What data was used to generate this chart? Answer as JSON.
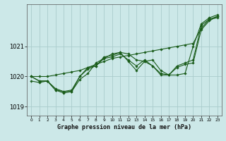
{
  "title": "Graphe pression niveau de la mer (hPa)",
  "background_color": "#cce8e8",
  "line_color": "#1a5c1a",
  "grid_color": "#aacccc",
  "ylim": [
    1018.7,
    1022.4
  ],
  "yticks": [
    1019,
    1020,
    1021
  ],
  "xlim": [
    -0.5,
    23.5
  ],
  "xticks": [
    0,
    1,
    2,
    3,
    4,
    5,
    6,
    7,
    8,
    9,
    10,
    11,
    12,
    13,
    14,
    15,
    16,
    17,
    18,
    19,
    20,
    21,
    22,
    23
  ],
  "series": [
    {
      "x": [
        0,
        1,
        2,
        3,
        4,
        5,
        6,
        7,
        8,
        9,
        10,
        11,
        12,
        13,
        14,
        15,
        16,
        17,
        18,
        19,
        20,
        21,
        22,
        23
      ],
      "y": [
        1020.0,
        1020.0,
        1020.0,
        1020.05,
        1020.1,
        1020.15,
        1020.2,
        1020.3,
        1020.4,
        1020.5,
        1020.6,
        1020.65,
        1020.7,
        1020.75,
        1020.8,
        1020.85,
        1020.9,
        1020.95,
        1021.0,
        1021.05,
        1021.1,
        1021.6,
        1021.9,
        1021.95
      ]
    },
    {
      "x": [
        0,
        1,
        2,
        3,
        4,
        5,
        6,
        7,
        8,
        9,
        10,
        11,
        12,
        13,
        14,
        15,
        16,
        17,
        18,
        19,
        20,
        21,
        22,
        23
      ],
      "y": [
        1019.85,
        1019.8,
        1019.85,
        1019.6,
        1019.5,
        1019.5,
        1019.9,
        1020.1,
        1020.45,
        1020.6,
        1020.75,
        1020.8,
        1020.75,
        1020.55,
        1020.5,
        1020.55,
        1020.2,
        1020.05,
        1020.05,
        1020.1,
        1021.0,
        1021.75,
        1021.95,
        1022.05
      ]
    },
    {
      "x": [
        0,
        1,
        2,
        3,
        4,
        5,
        6,
        7,
        8,
        9,
        10,
        11,
        12,
        13,
        14,
        15,
        16,
        17,
        18,
        19,
        20,
        21,
        22,
        23
      ],
      "y": [
        1020.0,
        1019.85,
        1019.85,
        1019.55,
        1019.45,
        1019.5,
        1020.0,
        1020.3,
        1020.35,
        1020.6,
        1020.65,
        1020.75,
        1020.55,
        1020.35,
        1020.55,
        1020.35,
        1020.05,
        1020.05,
        1020.3,
        1020.4,
        1020.45,
        1021.55,
        1021.85,
        1022.0
      ]
    },
    {
      "x": [
        0,
        1,
        2,
        3,
        4,
        5,
        6,
        7,
        8,
        9,
        10,
        11,
        12,
        13,
        14,
        15,
        16,
        17,
        18,
        19,
        20,
        21,
        22,
        23
      ],
      "y": [
        1020.0,
        1019.85,
        1019.85,
        1019.55,
        1019.5,
        1019.55,
        1020.0,
        1020.25,
        1020.35,
        1020.65,
        1020.7,
        1020.8,
        1020.5,
        1020.2,
        1020.5,
        1020.35,
        1020.1,
        1020.05,
        1020.35,
        1020.45,
        1020.55,
        1021.7,
        1021.9,
        1022.0
      ]
    }
  ]
}
